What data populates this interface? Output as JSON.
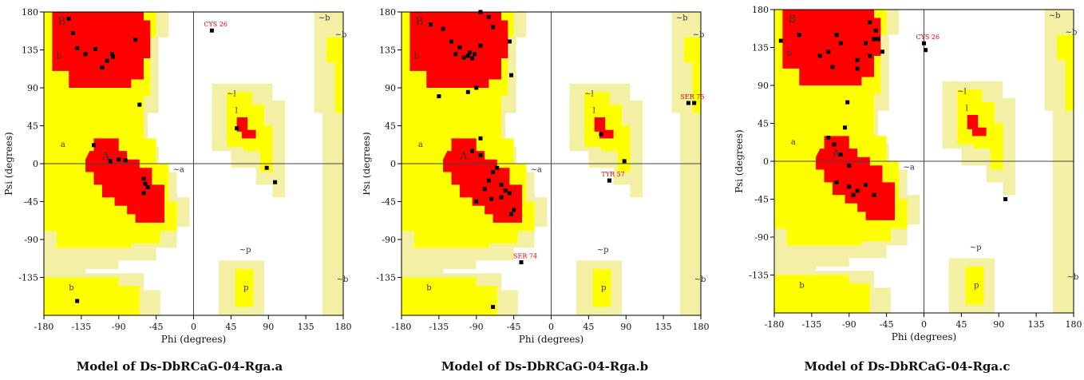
{
  "figure": {
    "panels": [
      {
        "caption": "Model of Ds-DbRCaG-04-Rga.a"
      },
      {
        "caption": "Model of Ds-DbRCaG-04-Rga.b"
      },
      {
        "caption": "Model of Ds-DbRCaG-04-Rga.c"
      }
    ]
  },
  "chart_data": [
    {
      "type": "scatter",
      "xlabel": "Phi (degrees)",
      "ylabel": "Psi (degrees)",
      "xlim": [
        -180,
        180
      ],
      "ylim": [
        -180,
        180
      ],
      "x_ticks": [
        -180,
        -135,
        -90,
        -45,
        0,
        45,
        90,
        135,
        180
      ],
      "y_ticks": [
        180,
        135,
        90,
        45,
        0,
        -45,
        -90,
        -135
      ],
      "region_labels": [
        "B",
        "b",
        "a",
        "A",
        "~a",
        "~l",
        "l",
        "~b",
        "~p",
        "p",
        "~b",
        "~b",
        "b"
      ],
      "annotations": [
        {
          "text": "CYS 26",
          "x": 22,
          "y": 158
        }
      ],
      "points": [
        [
          -150,
          172
        ],
        [
          -145,
          155
        ],
        [
          -140,
          137
        ],
        [
          -130,
          130
        ],
        [
          -118,
          136
        ],
        [
          -110,
          114
        ],
        [
          -104,
          122
        ],
        [
          -98,
          130
        ],
        [
          -97,
          127
        ],
        [
          -70,
          147
        ],
        [
          -65,
          70
        ],
        [
          -120,
          22
        ],
        [
          -100,
          3
        ],
        [
          -90,
          5
        ],
        [
          -82,
          4
        ],
        [
          -60,
          -18
        ],
        [
          -58,
          -24
        ],
        [
          -55,
          -28
        ],
        [
          -60,
          -35
        ],
        [
          52,
          42
        ],
        [
          88,
          -5
        ],
        [
          98,
          -22
        ],
        [
          -140,
          -163
        ]
      ]
    },
    {
      "type": "scatter",
      "xlabel": "Phi (degrees)",
      "ylabel": "Psi (degrees)",
      "xlim": [
        -180,
        180
      ],
      "ylim": [
        -180,
        180
      ],
      "x_ticks": [
        -180,
        -135,
        -90,
        -45,
        0,
        45,
        90,
        135,
        180
      ],
      "y_ticks": [
        180,
        135,
        90,
        45,
        0,
        -45,
        -90,
        -135
      ],
      "region_labels": [
        "B",
        "b",
        "a",
        "A",
        "~a",
        "~l",
        "l",
        "~b",
        "~p",
        "p",
        "~b",
        "~b",
        "b"
      ],
      "annotations": [
        {
          "text": "SER 75",
          "x": 165,
          "y": 72
        },
        {
          "text": "TYR 57",
          "x": 70,
          "y": -20
        },
        {
          "text": "SER 74",
          "x": -36,
          "y": -117
        }
      ],
      "points": [
        [
          -145,
          165
        ],
        [
          -130,
          160
        ],
        [
          -120,
          145
        ],
        [
          -115,
          130
        ],
        [
          -110,
          138
        ],
        [
          -105,
          126
        ],
        [
          -100,
          128
        ],
        [
          -98,
          132
        ],
        [
          -95,
          125
        ],
        [
          -92,
          130
        ],
        [
          -85,
          140
        ],
        [
          -85,
          180
        ],
        [
          -75,
          174
        ],
        [
          -70,
          162
        ],
        [
          -50,
          145
        ],
        [
          -48,
          105
        ],
        [
          -90,
          90
        ],
        [
          -100,
          85
        ],
        [
          -135,
          80
        ],
        [
          -85,
          30
        ],
        [
          -95,
          15
        ],
        [
          -85,
          10
        ],
        [
          -70,
          -10
        ],
        [
          -65,
          -5
        ],
        [
          -75,
          -20
        ],
        [
          -80,
          -30
        ],
        [
          -60,
          -25
        ],
        [
          -55,
          -32
        ],
        [
          -50,
          -35
        ],
        [
          -60,
          -40
        ],
        [
          -72,
          -42
        ],
        [
          -90,
          -45
        ],
        [
          -45,
          -55
        ],
        [
          -48,
          -60
        ],
        [
          60,
          35
        ],
        [
          70,
          -20
        ],
        [
          88,
          3
        ],
        [
          172,
          72
        ],
        [
          -36,
          -117
        ],
        [
          -70,
          -170
        ]
      ]
    },
    {
      "type": "scatter",
      "xlabel": "Phi (degrees)",
      "ylabel": "Psi (degrees)",
      "xlim": [
        -180,
        180
      ],
      "ylim": [
        -180,
        180
      ],
      "x_ticks": [
        -180,
        -135,
        -90,
        -45,
        0,
        45,
        90,
        135,
        180
      ],
      "y_ticks": [
        180,
        135,
        90,
        45,
        0,
        -45,
        -90,
        -135
      ],
      "region_labels": [
        "B",
        "b",
        "a",
        "A",
        "~a",
        "~l",
        "l",
        "~b",
        "~p",
        "p",
        "~b",
        "~b",
        "b"
      ],
      "annotations": [
        {
          "text": "CYS 26",
          "x": 0,
          "y": 140
        }
      ],
      "points": [
        [
          -172,
          143
        ],
        [
          -150,
          150
        ],
        [
          -125,
          125
        ],
        [
          -115,
          130
        ],
        [
          -100,
          140
        ],
        [
          -80,
          120
        ],
        [
          -70,
          140
        ],
        [
          -65,
          125
        ],
        [
          -60,
          145
        ],
        [
          -58,
          155
        ],
        [
          -55,
          145
        ],
        [
          -65,
          165
        ],
        [
          -50,
          130
        ],
        [
          -110,
          112
        ],
        [
          -80,
          110
        ],
        [
          -105,
          150
        ],
        [
          -92,
          70
        ],
        [
          -95,
          40
        ],
        [
          -115,
          28
        ],
        [
          -108,
          20
        ],
        [
          -100,
          8
        ],
        [
          -90,
          -5
        ],
        [
          -105,
          -25
        ],
        [
          -90,
          -30
        ],
        [
          -70,
          -28
        ],
        [
          -85,
          -40
        ],
        [
          -60,
          -40
        ],
        [
          -80,
          -35
        ],
        [
          2,
          132
        ],
        [
          98,
          -45
        ]
      ]
    }
  ]
}
